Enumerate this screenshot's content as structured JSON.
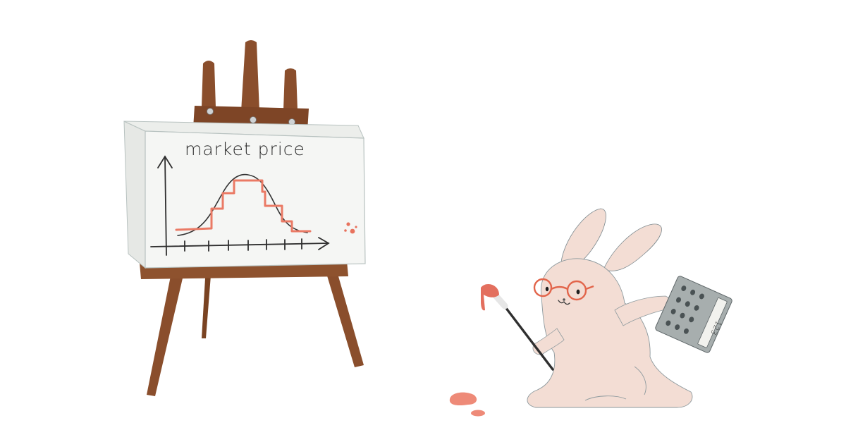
{
  "board": {
    "title": "market price"
  },
  "calculator": {
    "display": "123"
  },
  "colors": {
    "easel_wood": "#8a4e2c",
    "easel_dark": "#6e3b1f",
    "canvas": "#f4f5f3",
    "pencil": "#2e2e2e",
    "price_line": "#ea7a65",
    "bunny_fur": "#f3ddd4",
    "glasses": "#e2654b",
    "calculator_body": "#a7aeae",
    "paint_blob": "#ee8a78"
  }
}
